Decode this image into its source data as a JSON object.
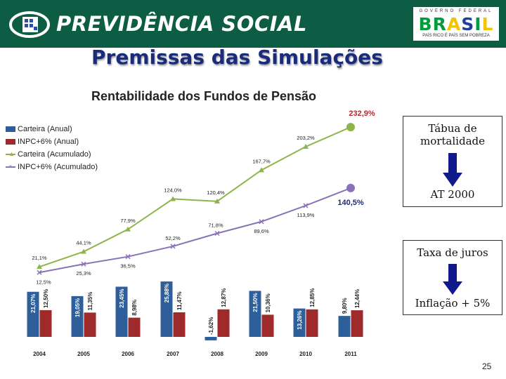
{
  "header": {
    "title": "PREVIDÊNCIA SOCIAL",
    "gov_logo": {
      "small_text": "GOVERNO FEDERAL",
      "brasil": "BRASIL",
      "slogan": "PAÍS RICO É PAÍS SEM POBREZA"
    },
    "colors": {
      "header_bg": "#0d5d44",
      "brasil_green": "#009b3a",
      "brasil_yellow": "#f5c400",
      "brasil_blue": "#1f3f99"
    }
  },
  "page_title": "Premissas das Simulações",
  "side_panel": {
    "box1_label": "Tábua de mortalidade",
    "box1_value": "AT 2000",
    "box2_label": "Taxa de juros",
    "box2_value": "Inflação + 5%",
    "arrow_color": "#101a8a"
  },
  "page_number": "25",
  "chart_data": {
    "type": "bar+line",
    "title": "Rentabilidade dos Fundos de Pensão",
    "categories": [
      "2004",
      "2005",
      "2006",
      "2007",
      "2008",
      "2009",
      "2010",
      "2011"
    ],
    "bar_series": [
      {
        "name": "Carteira (Anual)",
        "color": "#2e5f9a",
        "values": [
          21.07,
          19.05,
          23.45,
          25.88,
          -1.62,
          21.5,
          13.26,
          9.8
        ],
        "labels": [
          "21,07%",
          "19,05%",
          "23,45%",
          "25,88%",
          "-1,62%",
          "21,50%",
          "13,26%",
          "9,80%"
        ]
      },
      {
        "name": "INPC+6% (Anual)",
        "color": "#9e2a2b",
        "values": [
          12.5,
          11.35,
          8.98,
          11.47,
          12.87,
          10.36,
          12.85,
          12.44
        ],
        "labels": [
          "12,50%",
          "11,35%",
          "8,98%",
          "11,47%",
          "12,87%",
          "10,36%",
          "12,85%",
          "12,44%"
        ]
      }
    ],
    "line_series": [
      {
        "name": "Carteira (Acumulado)",
        "color": "#8db54a",
        "marker": "▲",
        "values": [
          21.1,
          44.1,
          77.9,
          124.0,
          120.4,
          167.7,
          203.2,
          232.9
        ],
        "labels": [
          "21,1%",
          "44,1%",
          "77,9%",
          "124,0%",
          "120,4%",
          "167,7%",
          "203,2%",
          "232,9%"
        ]
      },
      {
        "name": "INPC+6% (Acumulado)",
        "color": "#8a72b8",
        "marker": "×",
        "values": [
          12.5,
          25.3,
          36.5,
          52.2,
          71.8,
          89.6,
          113.9,
          140.5
        ],
        "labels": [
          "12,5%",
          "25,3%",
          "36,5%",
          "52,2%",
          "71,8%",
          "89,6%",
          "113,9%",
          "140,5%"
        ]
      }
    ],
    "legend_position": "left"
  }
}
